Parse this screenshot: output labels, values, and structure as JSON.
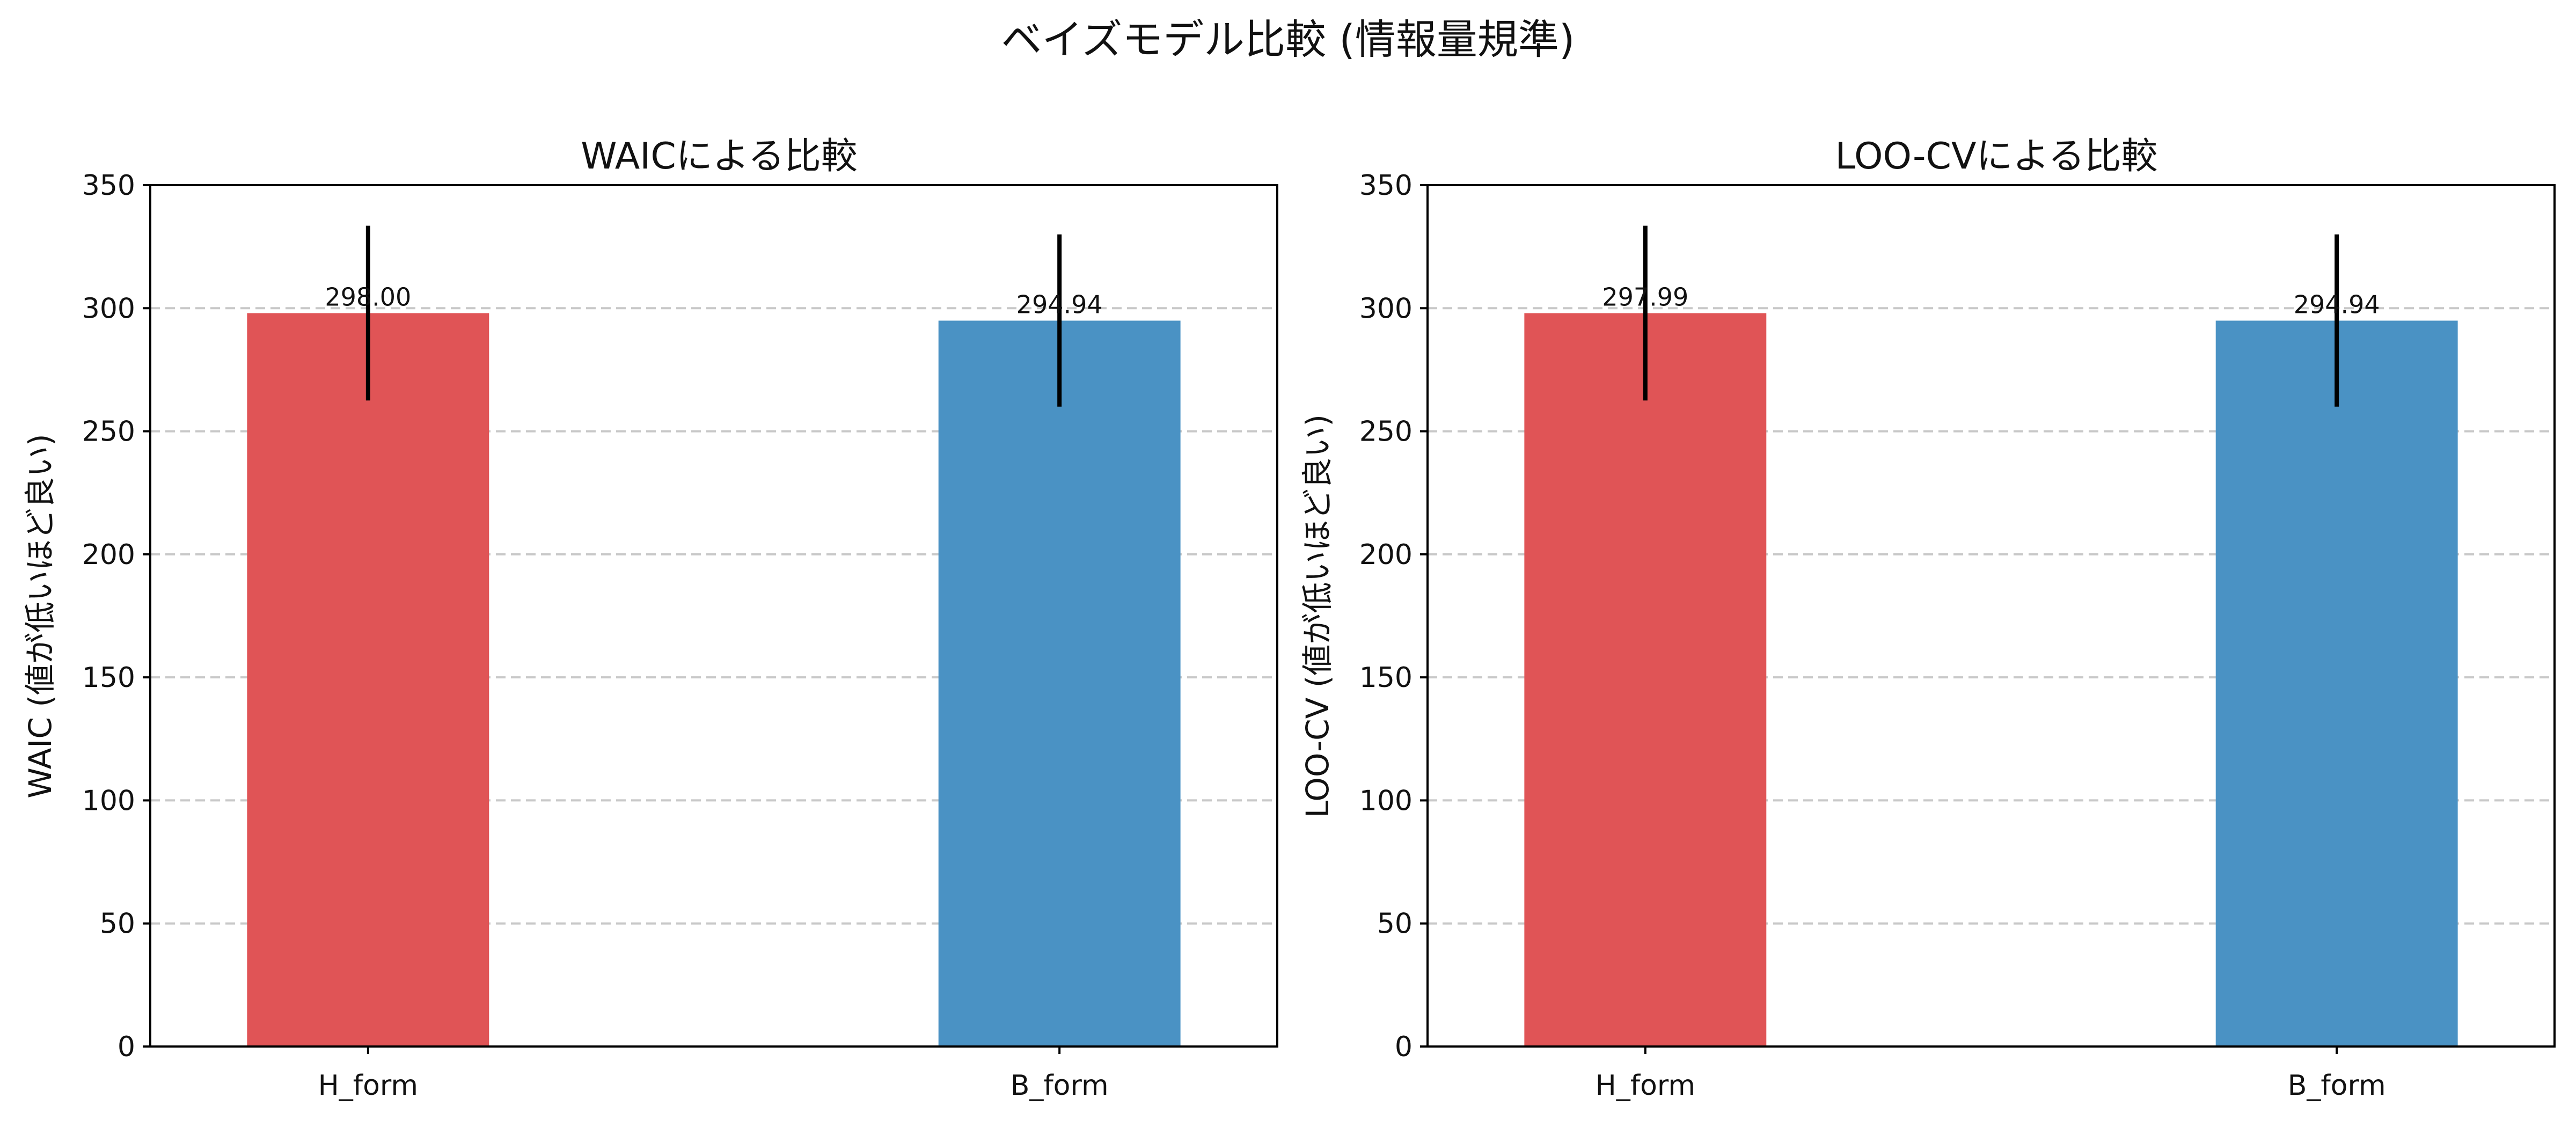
{
  "figure": {
    "title": "ベイズモデル比較 (情報量規準)"
  },
  "chart_data": [
    {
      "type": "bar",
      "title": "WAICによる比較",
      "xlabel": "",
      "ylabel": "WAIC (値が低いほど良い)",
      "categories": [
        "H_form",
        "B_form"
      ],
      "values": [
        298.0,
        294.94
      ],
      "value_labels": [
        "298.00",
        "294.94"
      ],
      "error_low": [
        262.5,
        260.0
      ],
      "error_high": [
        333.5,
        330.0
      ],
      "colors": [
        "#e05456",
        "#4a92c4"
      ],
      "ylim": [
        0,
        350
      ],
      "yticks": [
        0,
        50,
        100,
        150,
        200,
        250,
        300,
        350
      ],
      "ytick_labels": [
        "0",
        "50",
        "100",
        "150",
        "200",
        "250",
        "300",
        "350"
      ],
      "grid": "y-dashed",
      "legend": "none"
    },
    {
      "type": "bar",
      "title": "LOO-CVによる比較",
      "xlabel": "",
      "ylabel": "LOO-CV (値が低いほど良い)",
      "categories": [
        "H_form",
        "B_form"
      ],
      "values": [
        297.99,
        294.94
      ],
      "value_labels": [
        "297.99",
        "294.94"
      ],
      "error_low": [
        262.5,
        260.0
      ],
      "error_high": [
        333.5,
        330.0
      ],
      "colors": [
        "#e05456",
        "#4a92c4"
      ],
      "ylim": [
        0,
        350
      ],
      "yticks": [
        0,
        50,
        100,
        150,
        200,
        250,
        300,
        350
      ],
      "ytick_labels": [
        "0",
        "50",
        "100",
        "150",
        "200",
        "250",
        "300",
        "350"
      ],
      "grid": "y-dashed",
      "legend": "none"
    }
  ]
}
